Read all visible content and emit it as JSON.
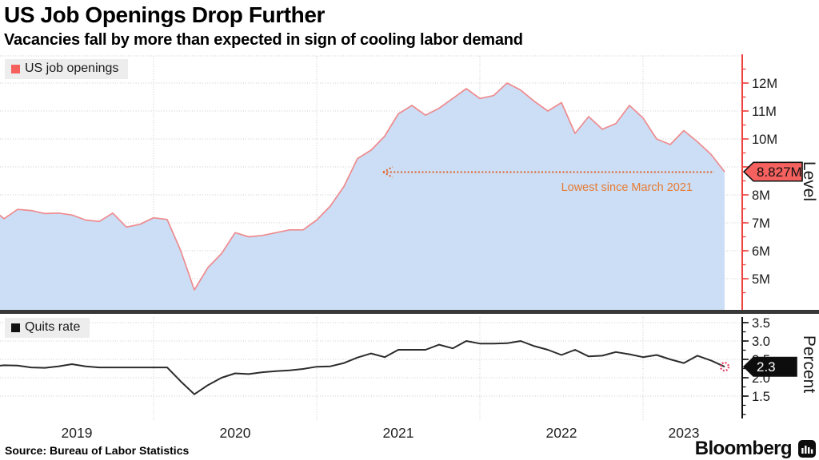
{
  "header": {
    "title": "US Job Openings Drop Further",
    "subtitle": "Vacancies fall by more than expected in sign of cooling labor demand"
  },
  "legend_top": {
    "label": "US job openings",
    "swatch_color": "#f4605c"
  },
  "legend_bottom": {
    "label": "Quits rate",
    "swatch_color": "#111111"
  },
  "annotation": {
    "text": "Lowest since March 2021",
    "color": "#e87a33"
  },
  "tags": {
    "openings_last": "8.827M",
    "quits_last": "2.3"
  },
  "axis_titles": {
    "top": "Level",
    "bottom": "Percent"
  },
  "source": "Source: Bureau of Labor Statistics",
  "brand": {
    "name": "Bloomberg"
  },
  "chart_data": [
    {
      "type": "area",
      "series_name": "US job openings",
      "unit": "millions",
      "frequency": "monthly",
      "x_start": "2019-01",
      "x_end": "2023-07",
      "values": [
        7.55,
        7.15,
        7.48,
        7.44,
        7.33,
        7.35,
        7.28,
        7.1,
        7.05,
        7.35,
        6.85,
        6.95,
        7.18,
        7.12,
        6.0,
        4.6,
        5.4,
        5.9,
        6.65,
        6.5,
        6.55,
        6.65,
        6.75,
        6.75,
        7.1,
        7.6,
        8.3,
        9.3,
        9.6,
        10.1,
        10.9,
        11.2,
        10.85,
        11.1,
        11.45,
        11.8,
        11.45,
        11.55,
        12.0,
        11.75,
        11.35,
        11.0,
        11.3,
        10.2,
        10.8,
        10.35,
        10.55,
        11.2,
        10.75,
        10.0,
        9.8,
        10.3,
        9.9,
        9.45,
        8.827
      ],
      "last_value": 8.827,
      "last_value_label": "8.827M",
      "annotation": "Lowest since March 2021",
      "ytick_values": [
        5,
        6,
        7,
        8,
        9,
        10,
        11,
        12
      ],
      "ytick_labels": [
        "5M",
        "6M",
        "7M",
        "8M",
        "9M",
        "10M",
        "11M",
        "12M"
      ],
      "ylabel": "Level",
      "x_tick_labels": [
        "2019",
        "2020",
        "2021",
        "2022",
        "2023"
      ],
      "line_color": "#ee8b8e",
      "fill_color": "#cbdef5",
      "axis_color": "#f0423d",
      "tag_fill": "#f4615e",
      "tag_text_color": "#111111",
      "arrow_color": "#e25f24",
      "grid": true,
      "legend_position": "top-left"
    },
    {
      "type": "line",
      "series_name": "Quits rate",
      "unit": "percent",
      "frequency": "monthly",
      "x_start": "2019-01",
      "x_end": "2023-07",
      "values": [
        2.3,
        2.34,
        2.33,
        2.28,
        2.27,
        2.31,
        2.37,
        2.31,
        2.28,
        2.28,
        2.28,
        2.28,
        2.28,
        2.28,
        1.9,
        1.55,
        1.8,
        2.0,
        2.12,
        2.1,
        2.15,
        2.18,
        2.2,
        2.24,
        2.3,
        2.31,
        2.4,
        2.55,
        2.66,
        2.56,
        2.76,
        2.76,
        2.76,
        2.9,
        2.8,
        3.0,
        2.93,
        2.93,
        2.94,
        3.0,
        2.86,
        2.76,
        2.62,
        2.76,
        2.58,
        2.6,
        2.7,
        2.64,
        2.56,
        2.62,
        2.5,
        2.4,
        2.6,
        2.47,
        2.3
      ],
      "last_value": 2.3,
      "last_value_label": "2.3",
      "ytick_values": [
        1.5,
        2.0,
        2.5,
        3.0,
        3.5
      ],
      "ytick_labels": [
        "1.5",
        "2.0",
        "2.5",
        "3.0",
        "3.5"
      ],
      "ylabel": "Percent",
      "x_tick_labels": [
        "2019",
        "2020",
        "2021",
        "2022",
        "2023"
      ],
      "line_color": "#2b2b2b",
      "axis_color": "#111111",
      "tag_fill": "#0d0d0d",
      "tag_text_color": "#ffffff",
      "end_marker_color": "#e8486e",
      "grid": true,
      "legend_position": "top-left"
    }
  ]
}
